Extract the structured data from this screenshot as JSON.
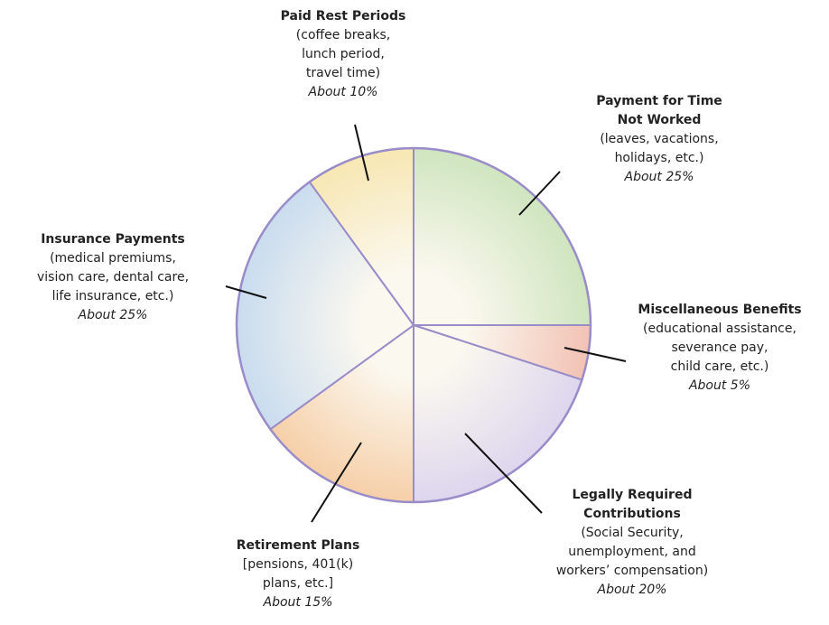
{
  "chart_data": {
    "type": "pie",
    "categories": [
      "Payment for Time Not Worked",
      "Miscellaneous Benefits",
      "Legally Required Contributions",
      "Retirement Plans",
      "Insurance Payments",
      "Paid Rest Periods"
    ],
    "descriptions": [
      [
        "(leaves, vacations,",
        "holidays, etc.)"
      ],
      [
        "(educational assistance,",
        "severance pay,",
        "child care, etc.)"
      ],
      [
        "(Social Security,",
        "unemployment, and",
        "workers’ compensation)"
      ],
      [
        "[pensions, 401(k)",
        "plans, etc.]"
      ],
      [
        "(medical premiums,",
        "vision care, dental care,",
        "life insurance, etc.)"
      ],
      [
        "(coffee breaks,",
        "lunch period,",
        "travel time)"
      ]
    ],
    "values": [
      25,
      5,
      20,
      15,
      25,
      10
    ],
    "value_labels": [
      "About 25%",
      "About 5%",
      "About 20%",
      "About 15%",
      "About 25%",
      "About 10%"
    ],
    "colors": [
      "#cfe5bf",
      "#f2c2b4",
      "#ddd6ee",
      "#f6cfa8",
      "#c9dcef",
      "#f7e7b3"
    ]
  }
}
